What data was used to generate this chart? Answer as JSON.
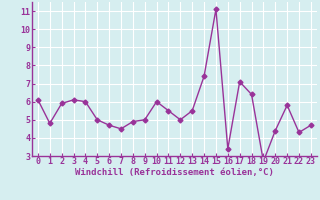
{
  "x": [
    0,
    1,
    2,
    3,
    4,
    5,
    6,
    7,
    8,
    9,
    10,
    11,
    12,
    13,
    14,
    15,
    16,
    17,
    18,
    19,
    20,
    21,
    22,
    23
  ],
  "y": [
    6.1,
    4.8,
    5.9,
    6.1,
    6.0,
    5.0,
    4.7,
    4.5,
    4.9,
    5.0,
    6.0,
    5.5,
    5.0,
    5.5,
    7.4,
    11.1,
    3.4,
    7.1,
    6.4,
    2.7,
    4.4,
    5.8,
    4.3,
    4.7
  ],
  "line_color": "#993399",
  "marker": "D",
  "marker_size": 2.5,
  "linewidth": 1.0,
  "xlabel": "Windchill (Refroidissement éolien,°C)",
  "ylim": [
    3,
    11.5
  ],
  "xlim": [
    -0.5,
    23.5
  ],
  "yticks": [
    3,
    4,
    5,
    6,
    7,
    8,
    9,
    10,
    11
  ],
  "xticks": [
    0,
    1,
    2,
    3,
    4,
    5,
    6,
    7,
    8,
    9,
    10,
    11,
    12,
    13,
    14,
    15,
    16,
    17,
    18,
    19,
    20,
    21,
    22,
    23
  ],
  "bg_color": "#d6eef0",
  "grid_color": "#ffffff",
  "label_color": "#993399",
  "xlabel_fontsize": 6.5,
  "tick_fontsize": 6
}
